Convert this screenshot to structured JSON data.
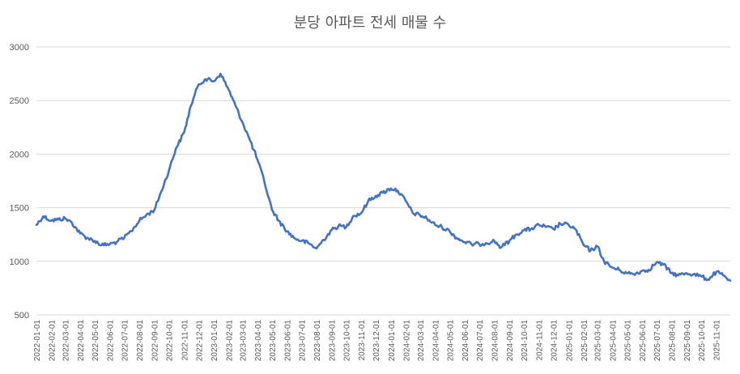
{
  "chart_data": {
    "type": "line",
    "title": "분당 아파트 전세 매물 수",
    "xlabel": "",
    "ylabel": "",
    "ylim": [
      500,
      3000
    ],
    "yticks": [
      500,
      1000,
      1500,
      2000,
      2500,
      3000
    ],
    "grid": true,
    "legend": "none",
    "x_range": [
      "2022-01-01",
      "2025-11-30"
    ],
    "x_tick_labels": [
      "2022-01-01",
      "2022-02-01",
      "2022-03-01",
      "2022-04-01",
      "2022-05-01",
      "2022-06-01",
      "2022-07-01",
      "2022-08-01",
      "2022-09-01",
      "2022-10-01",
      "2022-11-01",
      "2022-12-01",
      "2023-01-01",
      "2023-02-01",
      "2023-03-01",
      "2023-04-01",
      "2023-05-01",
      "2023-06-01",
      "2023-07-01",
      "2023-08-01",
      "2023-09-01",
      "2023-10-01",
      "2023-11-01",
      "2023-12-01",
      "2024-01-01",
      "2024-02-01",
      "2024-03-01",
      "2024-04-01",
      "2024-05-01",
      "2024-06-01",
      "2024-07-01",
      "2024-08-01",
      "2024-09-01",
      "2024-10-01",
      "2024-11-01",
      "2024-12-01",
      "2025-01-01",
      "2025-02-01",
      "2025-03-01",
      "2025-04-01",
      "2025-05-01",
      "2025-06-01",
      "2025-07-01",
      "2025-08-01",
      "2025-09-01",
      "2025-10-01",
      "2025-11-01"
    ],
    "series": [
      {
        "color": "#4472c4",
        "points": [
          [
            "2022-01-01",
            1340
          ],
          [
            "2022-01-15",
            1420
          ],
          [
            "2022-02-01",
            1380
          ],
          [
            "2022-02-15",
            1390
          ],
          [
            "2022-03-01",
            1400
          ],
          [
            "2022-03-15",
            1360
          ],
          [
            "2022-04-01",
            1260
          ],
          [
            "2022-04-15",
            1220
          ],
          [
            "2022-05-01",
            1190
          ],
          [
            "2022-05-15",
            1150
          ],
          [
            "2022-06-01",
            1160
          ],
          [
            "2022-06-15",
            1180
          ],
          [
            "2022-07-01",
            1220
          ],
          [
            "2022-07-15",
            1280
          ],
          [
            "2022-08-01",
            1380
          ],
          [
            "2022-08-15",
            1430
          ],
          [
            "2022-09-01",
            1480
          ],
          [
            "2022-09-15",
            1650
          ],
          [
            "2022-10-01",
            1850
          ],
          [
            "2022-10-15",
            2050
          ],
          [
            "2022-11-01",
            2200
          ],
          [
            "2022-11-15",
            2450
          ],
          [
            "2022-12-01",
            2650
          ],
          [
            "2022-12-15",
            2700
          ],
          [
            "2023-01-01",
            2680
          ],
          [
            "2023-01-15",
            2750
          ],
          [
            "2023-02-01",
            2600
          ],
          [
            "2023-02-15",
            2450
          ],
          [
            "2023-03-01",
            2300
          ],
          [
            "2023-03-15",
            2150
          ],
          [
            "2023-04-01",
            1950
          ],
          [
            "2023-04-15",
            1750
          ],
          [
            "2023-05-01",
            1480
          ],
          [
            "2023-05-15",
            1380
          ],
          [
            "2023-06-01",
            1280
          ],
          [
            "2023-06-15",
            1220
          ],
          [
            "2023-07-01",
            1190
          ],
          [
            "2023-07-15",
            1170
          ],
          [
            "2023-08-01",
            1120
          ],
          [
            "2023-08-15",
            1200
          ],
          [
            "2023-09-01",
            1290
          ],
          [
            "2023-09-15",
            1330
          ],
          [
            "2023-10-01",
            1320
          ],
          [
            "2023-10-15",
            1420
          ],
          [
            "2023-11-01",
            1450
          ],
          [
            "2023-11-15",
            1560
          ],
          [
            "2023-12-01",
            1610
          ],
          [
            "2023-12-15",
            1640
          ],
          [
            "2024-01-01",
            1680
          ],
          [
            "2024-01-15",
            1660
          ],
          [
            "2024-02-01",
            1560
          ],
          [
            "2024-02-15",
            1450
          ],
          [
            "2024-03-01",
            1430
          ],
          [
            "2024-03-15",
            1400
          ],
          [
            "2024-04-01",
            1340
          ],
          [
            "2024-04-15",
            1320
          ],
          [
            "2024-05-01",
            1280
          ],
          [
            "2024-05-15",
            1220
          ],
          [
            "2024-06-01",
            1180
          ],
          [
            "2024-06-15",
            1160
          ],
          [
            "2024-07-01",
            1160
          ],
          [
            "2024-07-15",
            1170
          ],
          [
            "2024-08-01",
            1190
          ],
          [
            "2024-08-15",
            1130
          ],
          [
            "2024-09-01",
            1190
          ],
          [
            "2024-09-15",
            1250
          ],
          [
            "2024-10-01",
            1290
          ],
          [
            "2024-10-15",
            1300
          ],
          [
            "2024-11-01",
            1340
          ],
          [
            "2024-11-15",
            1320
          ],
          [
            "2024-12-01",
            1300
          ],
          [
            "2024-12-15",
            1350
          ],
          [
            "2025-01-01",
            1340
          ],
          [
            "2025-01-15",
            1300
          ],
          [
            "2025-02-01",
            1150
          ],
          [
            "2025-02-15",
            1100
          ],
          [
            "2025-03-01",
            1140
          ],
          [
            "2025-03-15",
            1000
          ],
          [
            "2025-04-01",
            940
          ],
          [
            "2025-04-15",
            920
          ],
          [
            "2025-05-01",
            890
          ],
          [
            "2025-05-15",
            880
          ],
          [
            "2025-06-01",
            910
          ],
          [
            "2025-06-15",
            920
          ],
          [
            "2025-07-01",
            990
          ],
          [
            "2025-07-15",
            970
          ],
          [
            "2025-08-01",
            890
          ],
          [
            "2025-08-15",
            870
          ],
          [
            "2025-09-01",
            890
          ],
          [
            "2025-09-15",
            880
          ],
          [
            "2025-10-01",
            860
          ],
          [
            "2025-10-15",
            830
          ],
          [
            "2025-11-01",
            900
          ],
          [
            "2025-11-15",
            870
          ],
          [
            "2025-11-30",
            820
          ]
        ]
      }
    ]
  }
}
